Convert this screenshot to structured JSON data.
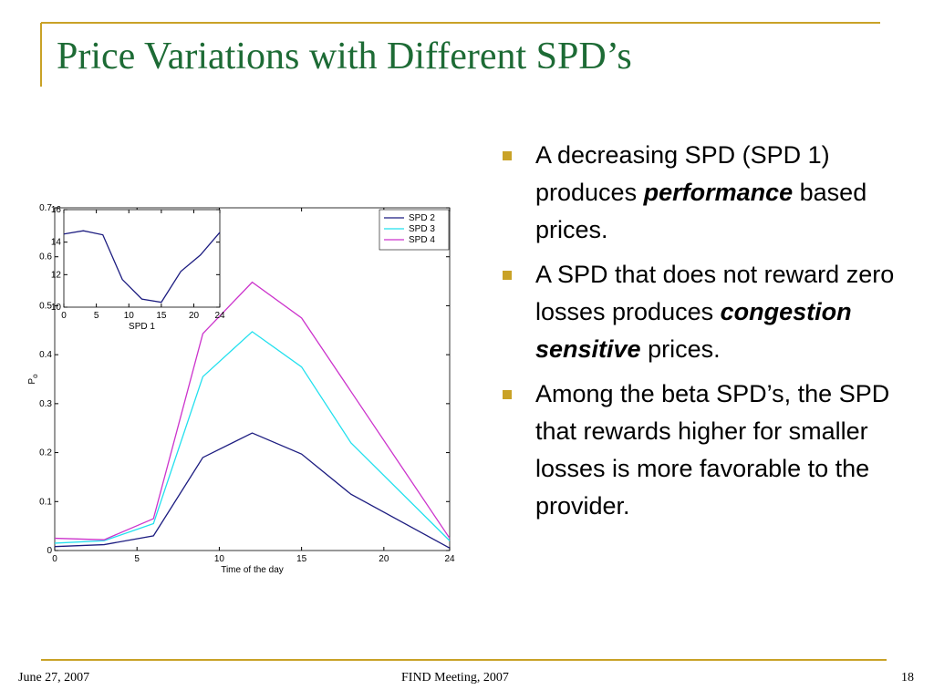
{
  "slide": {
    "title": "Price Variations with Different SPD’s",
    "bullets": [
      [
        "A decreasing SPD (SPD 1) produces ",
        "performance",
        " based prices."
      ],
      [
        "A SPD that does not reward zero losses produces ",
        "congestion sensitive",
        " prices."
      ],
      [
        "Among the beta SPD’s, the SPD that rewards higher for smaller losses is more favorable to the provider."
      ]
    ],
    "footer": {
      "date": "June 27, 2007",
      "event": "FIND Meeting, 2007",
      "page": "18"
    }
  },
  "chart_data": [
    {
      "type": "line",
      "xlabel": "Time of the day",
      "ylabel": "P",
      "ylabel_sub": "o",
      "x": [
        0,
        3,
        6,
        9,
        12,
        15,
        18,
        24
      ],
      "series": [
        {
          "name": "SPD 2",
          "color": "#1c1c80",
          "values": [
            0.008,
            0.012,
            0.03,
            0.19,
            0.24,
            0.197,
            0.115,
            0.005
          ]
        },
        {
          "name": "SPD 3",
          "color": "#22e0ee",
          "values": [
            0.015,
            0.02,
            0.055,
            0.355,
            0.447,
            0.375,
            0.22,
            0.02
          ]
        },
        {
          "name": "SPD 4",
          "color": "#cc33cc",
          "values": [
            0.025,
            0.022,
            0.065,
            0.443,
            0.548,
            0.475,
            0.325,
            0.025
          ]
        }
      ],
      "xlim": [
        0,
        24
      ],
      "xticks": [
        0,
        5,
        10,
        15,
        20,
        24
      ],
      "ylim": [
        0,
        0.7
      ],
      "yticks": [
        0,
        0.1,
        0.2,
        0.3,
        0.4,
        0.5,
        0.6,
        0.7
      ],
      "legend": "upper right"
    },
    {
      "type": "line",
      "xlabel": "SPD 1",
      "x": [
        0,
        3,
        6,
        9,
        12,
        15,
        18,
        21,
        24
      ],
      "series": [
        {
          "color": "#1c1c80",
          "values": [
            14.5,
            14.7,
            14.45,
            11.7,
            10.5,
            10.3,
            12.2,
            13.2,
            14.6
          ]
        }
      ],
      "xlim": [
        0,
        24
      ],
      "xticks": [
        0,
        5,
        10,
        15,
        20,
        24
      ],
      "ylim": [
        10,
        16
      ],
      "yticks": [
        10,
        12,
        14,
        16
      ]
    }
  ]
}
